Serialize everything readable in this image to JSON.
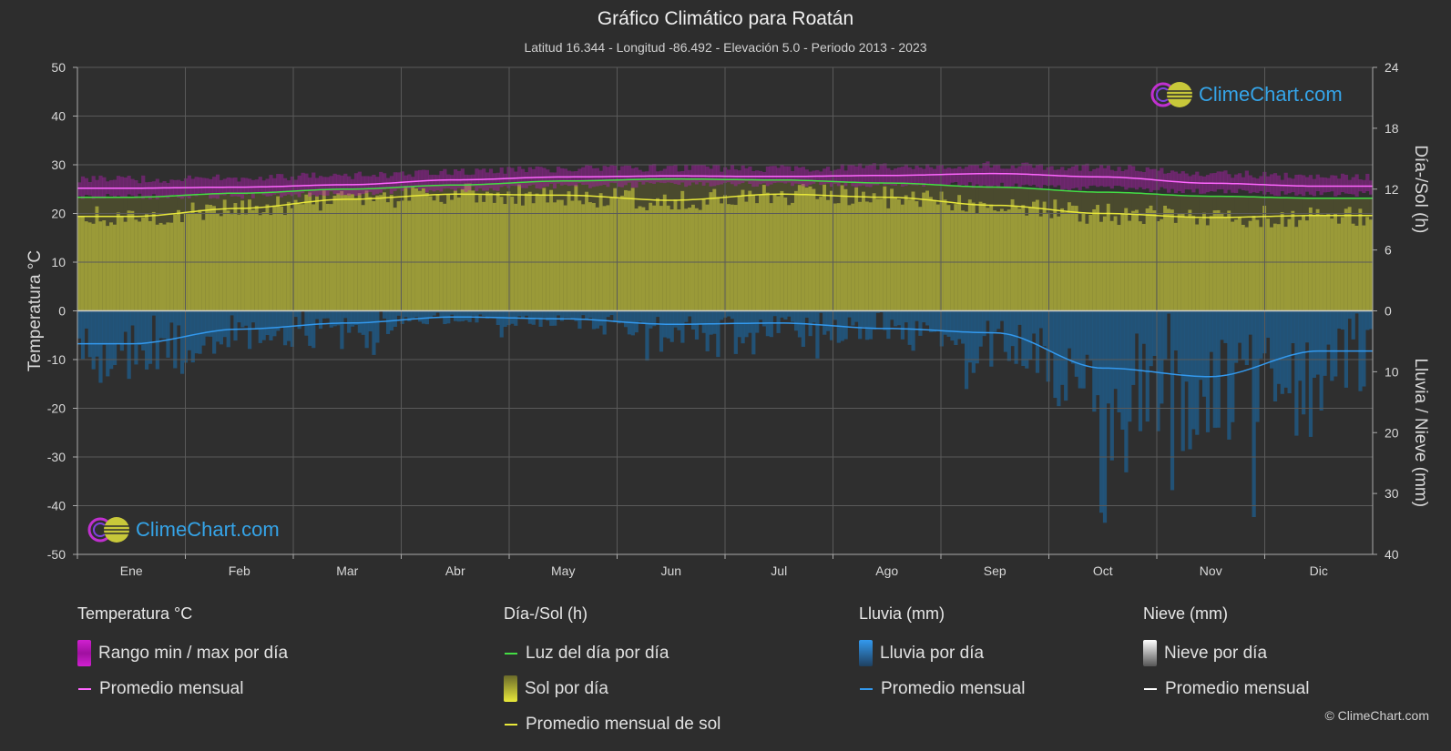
{
  "title": "Gráfico Climático para Roatán",
  "subtitle": "Latitud 16.344 - Longitud -86.492 - Elevación 5.0 - Periodo 2013 - 2023",
  "logo_text": "ClimeChart.com",
  "copyright": "© ClimeChart.com",
  "colors": {
    "background": "#2d2d2d",
    "temp_range": "#d020d0",
    "temp_avg": "#ff66ff",
    "daylight": "#44dd44",
    "sunshine_fill": "#a8a83a",
    "sunshine_avg": "#e8e83a",
    "rain_fill": "#1f5f8f",
    "rain_avg": "#3399ee",
    "snow_avg": "#ffffff"
  },
  "legend": {
    "temperature": {
      "heading": "Temperatura °C",
      "range_label": "Rango min / max por día",
      "avg_label": "Promedio mensual"
    },
    "sun": {
      "heading": "Día-/Sol (h)",
      "daylight_label": "Luz del día por día",
      "sunshine_label": "Sol por día",
      "sunshine_avg_label": "Promedio mensual de sol"
    },
    "rain": {
      "heading": "Lluvia (mm)",
      "rain_label": "Lluvia por día",
      "avg_label": "Promedio mensual"
    },
    "snow": {
      "heading": "Nieve (mm)",
      "snow_label": "Nieve por día",
      "avg_label": "Promedio mensual"
    }
  },
  "chart_data": {
    "type": "line",
    "title": "Gráfico Climático para Roatán",
    "categories": [
      "Ene",
      "Feb",
      "Mar",
      "Abr",
      "May",
      "Jun",
      "Jul",
      "Ago",
      "Sep",
      "Oct",
      "Nov",
      "Dic"
    ],
    "y_left": {
      "label": "Temperatura °C",
      "ticks": [
        50,
        40,
        30,
        20,
        10,
        0,
        -10,
        -20,
        -30,
        -40,
        -50
      ],
      "ylim": [
        -50,
        50
      ]
    },
    "y_right_top": {
      "label": "Día-/Sol (h)",
      "ticks": [
        24,
        18,
        12,
        6,
        0
      ],
      "ylim": [
        0,
        24
      ]
    },
    "y_right_bottom": {
      "label": "Lluvia / Nieve (mm)",
      "ticks": [
        0,
        10,
        20,
        30,
        40
      ],
      "ylim": [
        0,
        40
      ],
      "inverted": true
    },
    "grid": true,
    "series": [
      {
        "name": "Rango min / max por día",
        "axis": "temperature",
        "min": [
          23.5,
          23.6,
          24.2,
          25.0,
          25.6,
          26.0,
          26.0,
          26.0,
          25.8,
          25.2,
          24.6,
          24.0
        ],
        "max": [
          27.0,
          27.3,
          27.8,
          28.6,
          29.2,
          29.4,
          29.3,
          29.6,
          29.9,
          29.4,
          28.2,
          27.4
        ]
      },
      {
        "name": "Promedio mensual",
        "axis": "temperature",
        "values": [
          25.2,
          25.4,
          25.9,
          26.9,
          27.5,
          27.7,
          27.6,
          27.8,
          28.2,
          27.5,
          26.2,
          25.6
        ]
      },
      {
        "name": "Luz del día por día",
        "axis": "daylight_h",
        "values": [
          11.2,
          11.6,
          12.0,
          12.4,
          12.8,
          13.0,
          12.9,
          12.6,
          12.2,
          11.7,
          11.3,
          11.1
        ]
      },
      {
        "name": "Promedio mensual de sol",
        "axis": "daylight_h",
        "values": [
          9.3,
          10.1,
          11.0,
          11.5,
          11.4,
          10.9,
          11.5,
          11.2,
          10.4,
          9.6,
          9.2,
          9.4
        ]
      },
      {
        "name": "Rain monthly average",
        "axis": "rain_mm",
        "values": [
          5.4,
          3.0,
          2.0,
          1.0,
          1.3,
          2.2,
          2.0,
          2.9,
          3.6,
          9.4,
          10.8,
          6.6
        ]
      },
      {
        "name": "Snow monthly average",
        "axis": "rain_mm",
        "values": [
          0,
          0,
          0,
          0,
          0,
          0,
          0,
          0,
          0,
          0,
          0,
          0
        ]
      }
    ]
  }
}
